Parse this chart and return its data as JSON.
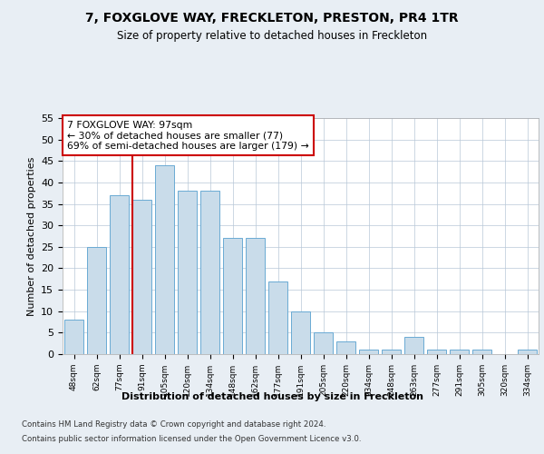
{
  "title": "7, FOXGLOVE WAY, FRECKLETON, PRESTON, PR4 1TR",
  "subtitle": "Size of property relative to detached houses in Freckleton",
  "xlabel": "Distribution of detached houses by size in Freckleton",
  "ylabel": "Number of detached properties",
  "categories": [
    "48sqm",
    "62sqm",
    "77sqm",
    "91sqm",
    "105sqm",
    "120sqm",
    "134sqm",
    "148sqm",
    "162sqm",
    "177sqm",
    "191sqm",
    "205sqm",
    "220sqm",
    "234sqm",
    "248sqm",
    "263sqm",
    "277sqm",
    "291sqm",
    "305sqm",
    "320sqm",
    "334sqm"
  ],
  "values": [
    8,
    25,
    37,
    36,
    44,
    38,
    38,
    27,
    27,
    17,
    10,
    5,
    3,
    1,
    1,
    4,
    1,
    1,
    1,
    0,
    1
  ],
  "bar_color": "#c9dcea",
  "bar_edge_color": "#6aaad4",
  "marker_line_color": "#cc0000",
  "annotation_text": "7 FOXGLOVE WAY: 97sqm\n← 30% of detached houses are smaller (77)\n69% of semi-detached houses are larger (179) →",
  "annotation_box_color": "#ffffff",
  "annotation_box_edge_color": "#cc0000",
  "ylim": [
    0,
    55
  ],
  "yticks": [
    0,
    5,
    10,
    15,
    20,
    25,
    30,
    35,
    40,
    45,
    50,
    55
  ],
  "footer_line1": "Contains HM Land Registry data © Crown copyright and database right 2024.",
  "footer_line2": "Contains public sector information licensed under the Open Government Licence v3.0.",
  "bg_color": "#e8eef4",
  "plot_bg_color": "#ffffff",
  "grid_color": "#b8c8d8"
}
